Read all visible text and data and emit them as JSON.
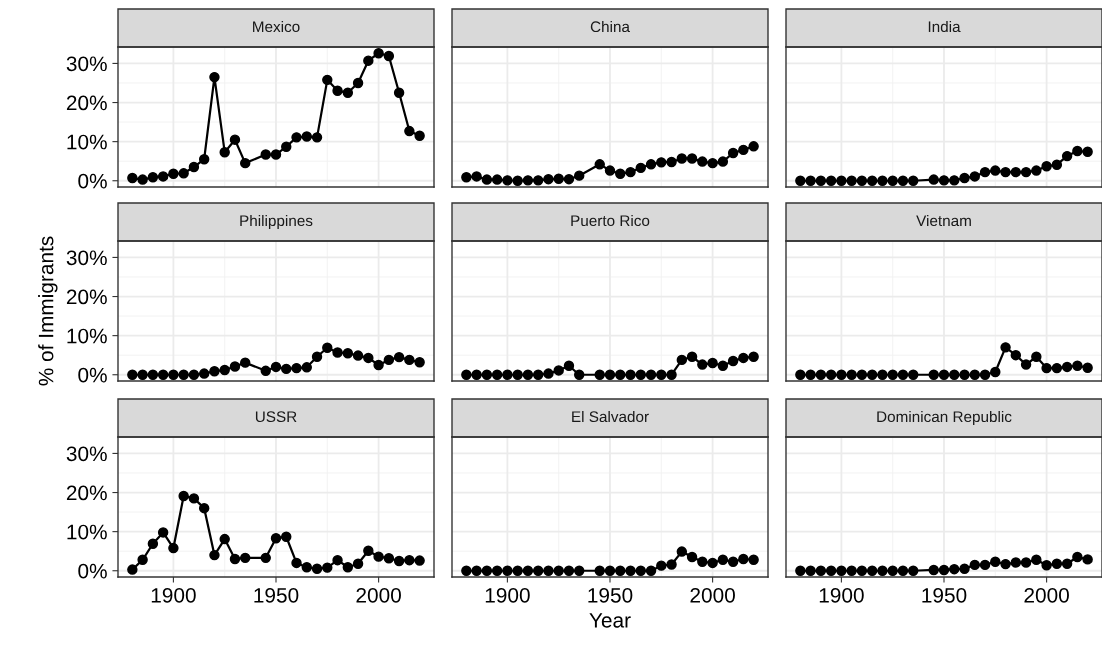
{
  "chart_data": [
    {
      "type": "line",
      "title": "Mexico",
      "color": "#000000",
      "marker": "circle",
      "grid": true,
      "tick_labels": "y",
      "xlim": [
        1873,
        2027
      ],
      "ylim": [
        -1.6,
        34.2
      ],
      "xticks": [
        1900,
        1950,
        2000
      ],
      "yticks": [
        {
          "value": 0,
          "label": "0%"
        },
        {
          "value": 10,
          "label": "10%"
        },
        {
          "value": 20,
          "label": "20%"
        },
        {
          "value": 30,
          "label": "30%"
        }
      ],
      "x": [
        1880,
        1885,
        1890,
        1895,
        1900,
        1905,
        1910,
        1915,
        1920,
        1925,
        1930,
        1935,
        1945,
        1950,
        1955,
        1960,
        1965,
        1970,
        1975,
        1980,
        1985,
        1990,
        1995,
        2000,
        2005,
        2010,
        2015,
        2020
      ],
      "values": [
        0.7,
        0.3,
        0.9,
        1.1,
        1.8,
        1.9,
        3.5,
        5.5,
        26.5,
        7.3,
        10.5,
        4.5,
        6.7,
        6.7,
        8.7,
        11.1,
        11.3,
        11.1,
        25.8,
        23.0,
        22.5,
        25.0,
        30.7,
        32.6,
        31.9,
        22.5,
        12.7,
        11.5
      ]
    },
    {
      "type": "line",
      "title": "China",
      "color": "#000000",
      "marker": "circle",
      "grid": true,
      "tick_labels": false,
      "xlim": [
        1873,
        2027
      ],
      "ylim": [
        -1.6,
        34.2
      ],
      "xticks": [
        1900,
        1950,
        2000
      ],
      "yticks": [
        0,
        10,
        20,
        30
      ],
      "x": [
        1880,
        1885,
        1890,
        1895,
        1900,
        1905,
        1910,
        1915,
        1920,
        1925,
        1930,
        1935,
        1945,
        1950,
        1955,
        1960,
        1965,
        1970,
        1975,
        1980,
        1985,
        1990,
        1995,
        2000,
        2005,
        2010,
        2015,
        2020
      ],
      "values": [
        0.9,
        1.1,
        0.3,
        0.3,
        0.1,
        0,
        0.1,
        0.1,
        0.4,
        0.5,
        0.4,
        1.3,
        4.2,
        2.6,
        1.8,
        2.2,
        3.3,
        4.2,
        4.7,
        4.8,
        5.7,
        5.7,
        4.9,
        4.5,
        4.9,
        7.1,
        7.9,
        8.8
      ]
    },
    {
      "type": "line",
      "title": "India",
      "color": "#000000",
      "marker": "circle",
      "grid": true,
      "tick_labels": false,
      "xlim": [
        1873,
        2027
      ],
      "ylim": [
        -1.6,
        34.2
      ],
      "xticks": [
        1900,
        1950,
        2000
      ],
      "yticks": [
        0,
        10,
        20,
        30
      ],
      "x": [
        1880,
        1885,
        1890,
        1895,
        1900,
        1905,
        1910,
        1915,
        1920,
        1925,
        1930,
        1935,
        1945,
        1950,
        1955,
        1960,
        1965,
        1970,
        1975,
        1980,
        1985,
        1990,
        1995,
        2000,
        2005,
        2010,
        2015,
        2020
      ],
      "values": [
        0,
        0,
        0,
        0,
        0,
        0,
        0,
        0,
        0,
        0,
        0,
        0,
        0.3,
        0.1,
        0.1,
        0.7,
        1.1,
        2.2,
        2.6,
        2.2,
        2.2,
        2.2,
        2.6,
        3.7,
        4.1,
        6.3,
        7.6,
        7.4
      ]
    },
    {
      "type": "line",
      "title": "Philippines",
      "ylabel": "% of Immigrants",
      "color": "#000000",
      "marker": "circle",
      "grid": true,
      "tick_labels": "y",
      "xlim": [
        1873,
        2027
      ],
      "ylim": [
        -1.6,
        34.2
      ],
      "xticks": [
        1900,
        1950,
        2000
      ],
      "yticks": [
        {
          "value": 0,
          "label": "0%"
        },
        {
          "value": 10,
          "label": "10%"
        },
        {
          "value": 20,
          "label": "20%"
        },
        {
          "value": 30,
          "label": "30%"
        }
      ],
      "x": [
        1880,
        1885,
        1890,
        1895,
        1900,
        1905,
        1910,
        1915,
        1920,
        1925,
        1930,
        1935,
        1945,
        1950,
        1955,
        1960,
        1965,
        1970,
        1975,
        1980,
        1985,
        1990,
        1995,
        2000,
        2005,
        2010,
        2015,
        2020
      ],
      "values": [
        0,
        0,
        0,
        0,
        0,
        0,
        0,
        0.3,
        0.9,
        1.2,
        2.1,
        3.1,
        1.0,
        2.0,
        1.5,
        1.7,
        1.9,
        4.6,
        6.9,
        5.7,
        5.5,
        4.9,
        4.3,
        2.5,
        3.8,
        4.5,
        3.8,
        3.2
      ]
    },
    {
      "type": "line",
      "title": "Puerto Rico",
      "color": "#000000",
      "marker": "circle",
      "grid": true,
      "tick_labels": false,
      "xlim": [
        1873,
        2027
      ],
      "ylim": [
        -1.6,
        34.2
      ],
      "xticks": [
        1900,
        1950,
        2000
      ],
      "yticks": [
        0,
        10,
        20,
        30
      ],
      "x": [
        1880,
        1885,
        1890,
        1895,
        1900,
        1905,
        1910,
        1915,
        1920,
        1925,
        1930,
        1935,
        1945,
        1950,
        1955,
        1960,
        1965,
        1970,
        1975,
        1980,
        1985,
        1990,
        1995,
        2000,
        2005,
        2010,
        2015,
        2020
      ],
      "values": [
        0,
        0,
        0,
        0,
        0,
        0,
        0,
        0,
        0.3,
        1.1,
        2.3,
        0,
        0,
        0,
        0,
        0,
        0,
        0,
        0,
        0,
        3.8,
        4.6,
        2.6,
        3.0,
        2.3,
        3.5,
        4.3,
        4.6
      ]
    },
    {
      "type": "line",
      "title": "Vietnam",
      "color": "#000000",
      "marker": "circle",
      "grid": true,
      "tick_labels": false,
      "xlim": [
        1873,
        2027
      ],
      "ylim": [
        -1.6,
        34.2
      ],
      "xticks": [
        1900,
        1950,
        2000
      ],
      "yticks": [
        0,
        10,
        20,
        30
      ],
      "x": [
        1880,
        1885,
        1890,
        1895,
        1900,
        1905,
        1910,
        1915,
        1920,
        1925,
        1930,
        1935,
        1945,
        1950,
        1955,
        1960,
        1965,
        1970,
        1975,
        1980,
        1985,
        1990,
        1995,
        2000,
        2005,
        2010,
        2015,
        2020
      ],
      "values": [
        0,
        0,
        0,
        0,
        0,
        0,
        0,
        0,
        0,
        0,
        0,
        0,
        0,
        0,
        0,
        0,
        0,
        0,
        0.7,
        7.0,
        5.0,
        2.6,
        4.6,
        1.7,
        1.7,
        2.0,
        2.3,
        1.8
      ]
    },
    {
      "type": "line",
      "title": "USSR",
      "color": "#000000",
      "marker": "circle",
      "grid": true,
      "xlim": [
        1873,
        2027
      ],
      "ylim": [
        -1.6,
        34.2
      ],
      "xticks": [
        1900,
        1950,
        2000
      ],
      "yticks": [
        {
          "value": 0,
          "label": "0%"
        },
        {
          "value": 10,
          "label": "10%"
        },
        {
          "value": 20,
          "label": "20%"
        },
        {
          "value": 30,
          "label": "30%"
        }
      ],
      "x": [
        1880,
        1885,
        1890,
        1895,
        1900,
        1905,
        1910,
        1915,
        1920,
        1925,
        1930,
        1935,
        1945,
        1950,
        1955,
        1960,
        1965,
        1970,
        1975,
        1980,
        1985,
        1990,
        1995,
        2000,
        2005,
        2010,
        2015,
        2020
      ],
      "values": [
        0.3,
        2.8,
        6.9,
        9.8,
        5.8,
        19.1,
        18.5,
        16.0,
        4.0,
        8.1,
        3.0,
        3.3,
        3.3,
        8.3,
        8.7,
        2.0,
        0.9,
        0.5,
        0.8,
        2.7,
        0.9,
        1.8,
        5.1,
        3.6,
        3.2,
        2.5,
        2.7,
        2.6
      ]
    },
    {
      "type": "line",
      "title": "El Salvador",
      "xlabel": "Year",
      "color": "#000000",
      "marker": "circle",
      "grid": true,
      "tick_labels": "x",
      "xlim": [
        1873,
        2027
      ],
      "ylim": [
        -1.6,
        34.2
      ],
      "xticks": [
        1900,
        1950,
        2000
      ],
      "yticks": [
        0,
        10,
        20,
        30
      ],
      "x": [
        1880,
        1885,
        1890,
        1895,
        1900,
        1905,
        1910,
        1915,
        1920,
        1925,
        1930,
        1935,
        1945,
        1950,
        1955,
        1960,
        1965,
        1970,
        1975,
        1980,
        1985,
        1990,
        1995,
        2000,
        2005,
        2010,
        2015,
        2020
      ],
      "values": [
        0,
        0,
        0,
        0,
        0,
        0,
        0,
        0,
        0,
        0,
        0,
        0,
        0,
        0,
        0,
        0,
        0,
        0,
        1.3,
        1.6,
        4.9,
        3.5,
        2.3,
        2.0,
        2.8,
        2.3,
        3.0,
        2.8
      ]
    },
    {
      "type": "line",
      "title": "Dominican Republic",
      "color": "#000000",
      "marker": "circle",
      "grid": true,
      "tick_labels": "x",
      "xlim": [
        1873,
        2027
      ],
      "ylim": [
        -1.6,
        34.2
      ],
      "xticks": [
        1900,
        1950,
        2000
      ],
      "yticks": [
        0,
        10,
        20,
        30
      ],
      "x": [
        1880,
        1885,
        1890,
        1895,
        1900,
        1905,
        1910,
        1915,
        1920,
        1925,
        1930,
        1935,
        1945,
        1950,
        1955,
        1960,
        1965,
        1970,
        1975,
        1980,
        1985,
        1990,
        1995,
        2000,
        2005,
        2010,
        2015,
        2020
      ],
      "values": [
        0,
        0,
        0,
        0,
        0,
        0,
        0,
        0,
        0,
        0,
        0,
        0,
        0.2,
        0.2,
        0.4,
        0.5,
        1.5,
        1.5,
        2.3,
        1.7,
        2.1,
        2.1,
        2.8,
        1.4,
        1.8,
        1.8,
        3.5,
        2.9
      ]
    }
  ]
}
